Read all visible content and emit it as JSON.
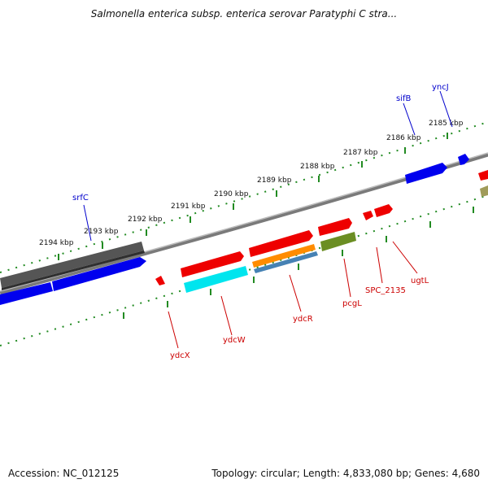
{
  "title": "Salmonella enterica subsp. enterica serovar Paratyphi C stra...",
  "footer": {
    "accession": "Accession: NC_012125",
    "topology": "Topology: circular; Length: 4,833,080 bp; Genes: 4,680"
  },
  "ticks": [
    "2194 kbp",
    "2193 kbp",
    "2192 kbp",
    "2191 kbp",
    "2190 kbp",
    "2189 kbp",
    "2188 kbp",
    "2187 kbp",
    "2186 kbp",
    "2185 kbp"
  ],
  "genes": {
    "forward": [
      "srfC",
      "sifB",
      "yncJ"
    ],
    "reverse": [
      "ydcX",
      "ydcW",
      "ydcR",
      "pcgL",
      "SPC_2135",
      "ugtL"
    ]
  },
  "colors": {
    "forward_label": "#0000cc",
    "reverse_label": "#cc0000",
    "tick": "#228b22",
    "backbone": "#7a7a7a",
    "red": "#ee0000",
    "blue": "#0000ee",
    "cyan": "#00e5ee",
    "orange": "#ff8c00",
    "steelblue": "#4682b4",
    "olive": "#6b8e23",
    "gray": "#555555",
    "khaki": "#a09b5a"
  }
}
